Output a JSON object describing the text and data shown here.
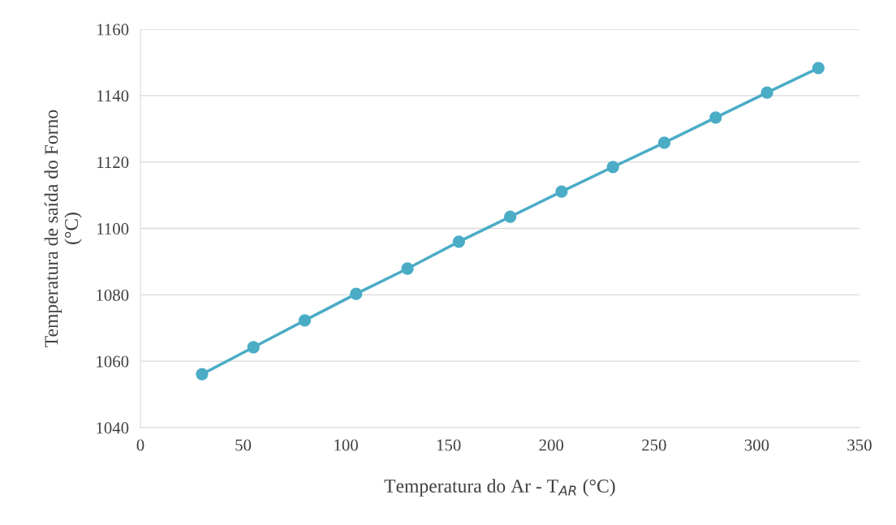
{
  "chart_data": {
    "type": "line",
    "xlabel": "Temperatura do Ar - T$_{AR}$ (°C)",
    "ylabel": "Temperatura de saída do Forno\n(°C)",
    "x": [
      30,
      55,
      80,
      105,
      130,
      155,
      180,
      205,
      230,
      255,
      280,
      305,
      330
    ],
    "series": [
      {
        "color": "#4bacc6",
        "values": [
          1056.1,
          1064.2,
          1072.3,
          1080.3,
          1087.9,
          1096.0,
          1103.5,
          1111.1,
          1118.5,
          1125.8,
          1133.4,
          1140.9,
          1148.3
        ]
      }
    ],
    "xlim": [
      0,
      350
    ],
    "xticks": [
      0,
      50,
      100,
      150,
      200,
      250,
      300,
      350
    ],
    "ylim": [
      1040,
      1160
    ],
    "yticks": [
      1040,
      1060,
      1080,
      1100,
      1120,
      1140,
      1160
    ],
    "grid": "y",
    "marker": "circle",
    "line_style": "solid",
    "legend": false
  }
}
